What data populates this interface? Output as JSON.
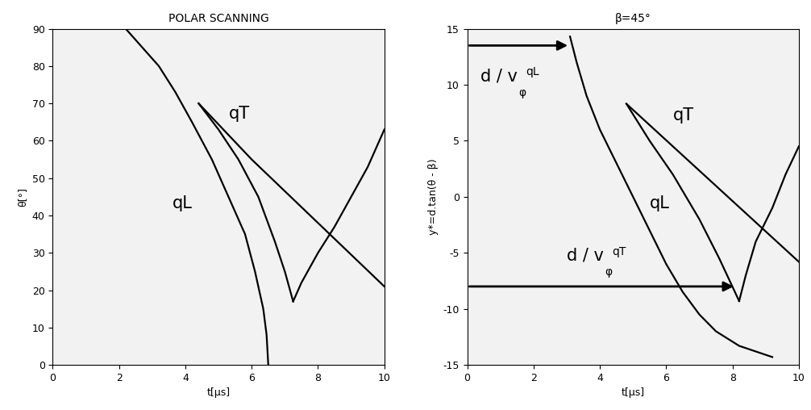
{
  "chart_data": [
    {
      "type": "line",
      "title": "POLAR SCANNING",
      "x_label": "t[µs]",
      "y_label": "θ[°]",
      "xlim": [
        0,
        10
      ],
      "xticks": [
        0,
        2,
        4,
        6,
        8,
        10
      ],
      "ylim": [
        0,
        90
      ],
      "yticks": [
        0,
        10,
        20,
        30,
        40,
        50,
        60,
        70,
        80,
        90
      ],
      "grid": false,
      "series": [
        {
          "color": "#000000",
          "line_style": "solid",
          "x": [
            2.2,
            2.7,
            3.2,
            3.7,
            4.2,
            4.8,
            5.3,
            5.8,
            6.1,
            6.35,
            6.45,
            6.5
          ],
          "values": [
            90,
            85,
            80,
            73,
            65,
            55,
            45,
            35,
            25,
            15,
            8,
            0
          ]
        },
        {
          "color": "#000000",
          "line_style": "solid",
          "x": [
            4.4,
            5.0,
            5.6,
            6.2,
            6.7,
            7.0,
            7.25
          ],
          "values": [
            70,
            63,
            55,
            45,
            33,
            25,
            17
          ]
        },
        {
          "color": "#000000",
          "line_style": "solid",
          "x": [
            7.25,
            7.5,
            8.0,
            8.5,
            9.0,
            9.5,
            10.0
          ],
          "values": [
            17,
            22,
            30,
            37,
            45,
            53,
            63
          ]
        },
        {
          "color": "#000000",
          "line_style": "solid",
          "x": [
            4.4,
            6.0,
            8.0,
            10.0
          ],
          "values": [
            70,
            55,
            38,
            21
          ]
        }
      ],
      "annotations": [
        {
          "text": "qL",
          "x": 3.6,
          "y": 42
        },
        {
          "text": "qT",
          "x": 5.3,
          "y": 66
        }
      ]
    },
    {
      "type": "line",
      "title": "β=45°",
      "x_label": "t[µs]",
      "y_label": "y*=d.tan(θ - β)",
      "xlim": [
        0,
        10
      ],
      "xticks": [
        0,
        2,
        4,
        6,
        8,
        10
      ],
      "ylim": [
        -15,
        15
      ],
      "yticks": [
        -15,
        -10,
        -5,
        0,
        5,
        10,
        15
      ],
      "grid": false,
      "series": [
        {
          "color": "#000000",
          "line_style": "solid",
          "x": [
            3.1,
            3.3,
            3.6,
            4.0,
            4.5,
            5.0,
            5.5,
            6.0,
            6.5,
            7.0,
            7.5,
            8.2,
            9.2
          ],
          "values": [
            14.3,
            12,
            9,
            6,
            3,
            0,
            -3,
            -6,
            -8.5,
            -10.5,
            -12,
            -13.3,
            -14.3
          ]
        },
        {
          "color": "#000000",
          "line_style": "solid",
          "x": [
            4.8,
            5.5,
            6.2,
            7.0,
            7.6,
            8.2
          ],
          "values": [
            8.3,
            5,
            2,
            -2,
            -5.5,
            -9.3
          ]
        },
        {
          "color": "#000000",
          "line_style": "solid",
          "x": [
            8.2,
            8.4,
            8.7,
            9.2,
            9.6,
            10.0
          ],
          "values": [
            -9.3,
            -7,
            -4,
            -1,
            2,
            4.5
          ]
        },
        {
          "color": "#000000",
          "line_style": "solid",
          "x": [
            4.8,
            10.0
          ],
          "values": [
            8.3,
            -5.8
          ]
        }
      ],
      "annotations": [
        {
          "text": "qL",
          "x": 5.5,
          "y": -1
        },
        {
          "text": "qT",
          "x": 6.2,
          "y": 6.8
        }
      ],
      "arrows": [
        {
          "text": "d / v",
          "sub": "φ",
          "sup": "qL",
          "x_from": 0,
          "x_to": 3.1,
          "y": 13.5,
          "text_x": 0.4,
          "text_y": 10.3
        },
        {
          "text": "d / v",
          "sub": "φ",
          "sup": "qT",
          "x_from": 0,
          "x_to": 8.1,
          "y": -8,
          "text_x": 3.0,
          "text_y": -5.7
        }
      ]
    }
  ]
}
